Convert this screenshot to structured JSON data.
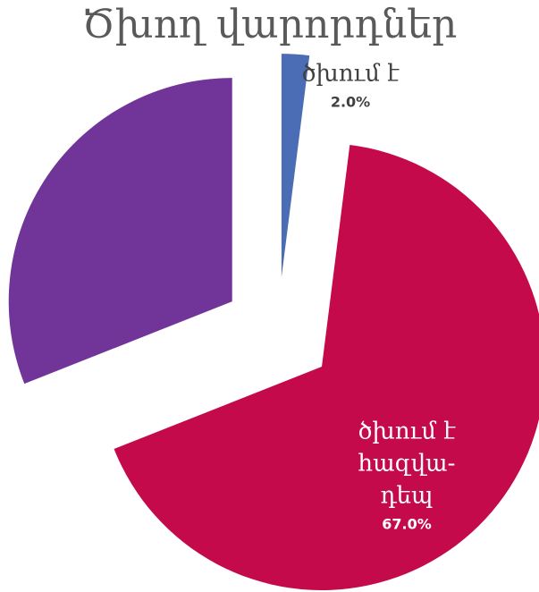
{
  "chart_data": {
    "type": "pie",
    "title": "Ծխող վարորդներ",
    "categories": [
      "ծխում է",
      "ծխում է\nհազվա-\nդեպ",
      null
    ],
    "values": [
      2.0,
      67.0,
      31.0
    ],
    "value_labels": [
      "2.0%",
      "67.0%",
      null
    ],
    "colors": [
      "#4a6db5",
      "#c40a4b",
      "#713599"
    ],
    "exploded": true
  }
}
